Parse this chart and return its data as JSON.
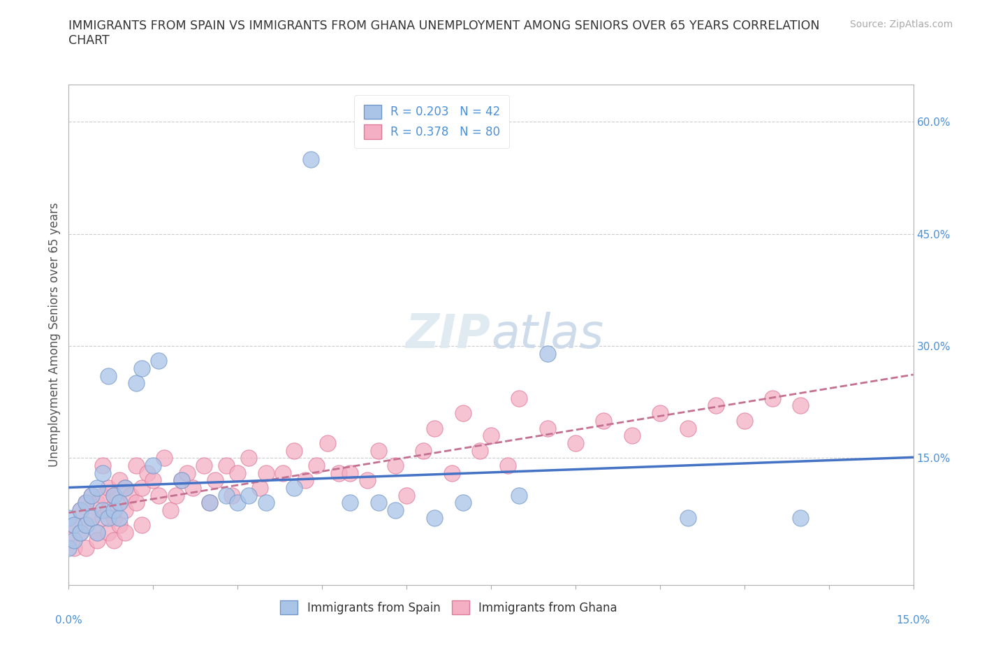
{
  "title": "IMMIGRANTS FROM SPAIN VS IMMIGRANTS FROM GHANA UNEMPLOYMENT AMONG SENIORS OVER 65 YEARS CORRELATION\nCHART",
  "source": "Source: ZipAtlas.com",
  "ylabel_label": "Unemployment Among Seniors over 65 years",
  "xlim": [
    0.0,
    0.15
  ],
  "ylim": [
    -0.02,
    0.65
  ],
  "yticks_right": [
    0.15,
    0.3,
    0.45,
    0.6
  ],
  "ytick_labels_right": [
    "15.0%",
    "30.0%",
    "45.0%",
    "60.0%"
  ],
  "spain_color": "#aac4e8",
  "ghana_color": "#f4afc5",
  "spain_edge": "#7097c8",
  "ghana_edge": "#e07898",
  "spain_line_color": "#4472c4",
  "ghana_line_color": "#c47090",
  "spain_R": 0.203,
  "spain_N": 42,
  "ghana_R": 0.378,
  "ghana_N": 80,
  "legend_x_label": "Immigrants from Spain",
  "legend_y_label": "Immigrants from Ghana",
  "spain_scatter_x": [
    0.0,
    0.0,
    0.001,
    0.001,
    0.002,
    0.002,
    0.003,
    0.003,
    0.004,
    0.004,
    0.005,
    0.005,
    0.006,
    0.006,
    0.007,
    0.007,
    0.008,
    0.008,
    0.009,
    0.009,
    0.01,
    0.012,
    0.013,
    0.015,
    0.016,
    0.02,
    0.025,
    0.028,
    0.03,
    0.032,
    0.035,
    0.04,
    0.043,
    0.05,
    0.055,
    0.058,
    0.065,
    0.07,
    0.08,
    0.085,
    0.11,
    0.13
  ],
  "spain_scatter_y": [
    0.03,
    0.07,
    0.04,
    0.06,
    0.05,
    0.08,
    0.06,
    0.09,
    0.07,
    0.1,
    0.05,
    0.11,
    0.08,
    0.13,
    0.07,
    0.26,
    0.08,
    0.1,
    0.07,
    0.09,
    0.11,
    0.25,
    0.27,
    0.14,
    0.28,
    0.12,
    0.09,
    0.1,
    0.09,
    0.1,
    0.09,
    0.11,
    0.55,
    0.09,
    0.09,
    0.08,
    0.07,
    0.09,
    0.1,
    0.29,
    0.07,
    0.07
  ],
  "ghana_scatter_x": [
    0.0,
    0.001,
    0.001,
    0.002,
    0.002,
    0.003,
    0.003,
    0.003,
    0.004,
    0.004,
    0.005,
    0.005,
    0.005,
    0.006,
    0.006,
    0.006,
    0.007,
    0.007,
    0.007,
    0.008,
    0.008,
    0.008,
    0.009,
    0.009,
    0.009,
    0.01,
    0.01,
    0.01,
    0.011,
    0.012,
    0.012,
    0.013,
    0.013,
    0.014,
    0.015,
    0.016,
    0.017,
    0.018,
    0.019,
    0.02,
    0.021,
    0.022,
    0.024,
    0.025,
    0.026,
    0.028,
    0.029,
    0.03,
    0.032,
    0.034,
    0.035,
    0.038,
    0.04,
    0.042,
    0.044,
    0.046,
    0.048,
    0.05,
    0.053,
    0.055,
    0.058,
    0.06,
    0.063,
    0.065,
    0.068,
    0.07,
    0.073,
    0.075,
    0.078,
    0.08,
    0.085,
    0.09,
    0.095,
    0.1,
    0.105,
    0.11,
    0.115,
    0.12,
    0.125,
    0.13
  ],
  "ghana_scatter_y": [
    0.04,
    0.03,
    0.06,
    0.05,
    0.08,
    0.06,
    0.09,
    0.03,
    0.07,
    0.1,
    0.05,
    0.09,
    0.04,
    0.07,
    0.1,
    0.14,
    0.08,
    0.11,
    0.05,
    0.07,
    0.1,
    0.04,
    0.09,
    0.12,
    0.06,
    0.08,
    0.11,
    0.05,
    0.1,
    0.09,
    0.14,
    0.11,
    0.06,
    0.13,
    0.12,
    0.1,
    0.15,
    0.08,
    0.1,
    0.12,
    0.13,
    0.11,
    0.14,
    0.09,
    0.12,
    0.14,
    0.1,
    0.13,
    0.15,
    0.11,
    0.13,
    0.13,
    0.16,
    0.12,
    0.14,
    0.17,
    0.13,
    0.13,
    0.12,
    0.16,
    0.14,
    0.1,
    0.16,
    0.19,
    0.13,
    0.21,
    0.16,
    0.18,
    0.14,
    0.23,
    0.19,
    0.17,
    0.2,
    0.18,
    0.21,
    0.19,
    0.22,
    0.2,
    0.23,
    0.22
  ]
}
